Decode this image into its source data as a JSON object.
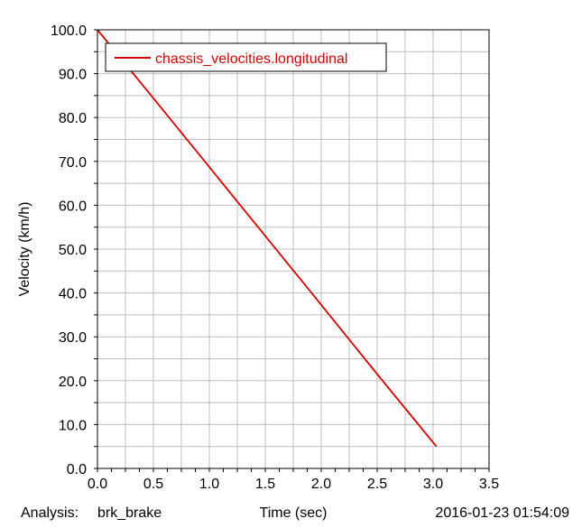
{
  "chart_data": {
    "type": "line",
    "xlabel": "Time (sec)",
    "ylabel": "Velocity (km/h)",
    "xlim": [
      0.0,
      3.5
    ],
    "ylim": [
      0.0,
      100.0
    ],
    "xticks": [
      0.0,
      0.5,
      1.0,
      1.5,
      2.0,
      2.5,
      3.0,
      3.5
    ],
    "yticks": [
      0.0,
      10.0,
      20.0,
      30.0,
      40.0,
      50.0,
      60.0,
      70.0,
      80.0,
      90.0,
      100.0
    ],
    "xtick_labels": [
      "0.0",
      "0.5",
      "1.0",
      "1.5",
      "2.0",
      "2.5",
      "3.0",
      "3.5"
    ],
    "ytick_labels": [
      "0.0",
      "10.0",
      "20.0",
      "30.0",
      "40.0",
      "50.0",
      "60.0",
      "70.0",
      "80.0",
      "90.0",
      "100.0"
    ],
    "grid": true,
    "legend_position": "top-left",
    "series": [
      {
        "name": "chassis_velocities.longitudinal",
        "color": "#d40000",
        "x": [
          0.0,
          0.5,
          1.0,
          1.5,
          2.0,
          2.5,
          3.03
        ],
        "y": [
          100.0,
          84.4,
          68.7,
          53.0,
          37.3,
          21.5,
          5.0
        ]
      }
    ]
  },
  "footer": {
    "analysis_label": "Analysis:",
    "analysis_name": "brk_brake",
    "timestamp": "2016-01-23 01:54:09"
  }
}
